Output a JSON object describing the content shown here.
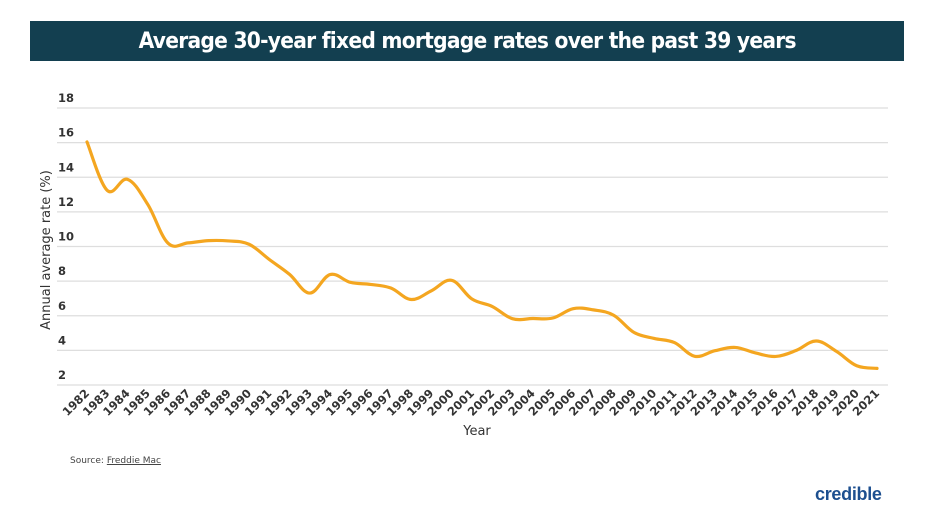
{
  "chart_data": {
    "type": "line",
    "title": "Average 30-year fixed mortgage rates over the past 39 years",
    "xlabel": "Year",
    "ylabel": "Annual average rate (%)",
    "ylim": [
      2,
      18
    ],
    "yticks": [
      2,
      4,
      6,
      8,
      10,
      12,
      14,
      16,
      18
    ],
    "grid": true,
    "line_color": "#f4a620",
    "x": [
      "1982",
      "1983",
      "1984",
      "1985",
      "1986",
      "1987",
      "1988",
      "1989",
      "1990",
      "1991",
      "1992",
      "1993",
      "1994",
      "1995",
      "1996",
      "1997",
      "1998",
      "1999",
      "2000",
      "2001",
      "2002",
      "2003",
      "2004",
      "2005",
      "2006",
      "2007",
      "2008",
      "2009",
      "2010",
      "2011",
      "2012",
      "2013",
      "2014",
      "2015",
      "2016",
      "2017",
      "2018",
      "2019",
      "2020",
      "2021"
    ],
    "values": [
      16.04,
      13.24,
      13.88,
      12.43,
      10.19,
      10.21,
      10.34,
      10.32,
      10.13,
      9.25,
      8.39,
      7.31,
      8.38,
      7.93,
      7.81,
      7.6,
      6.94,
      7.44,
      8.05,
      6.97,
      6.54,
      5.83,
      5.84,
      5.87,
      6.41,
      6.34,
      6.03,
      5.04,
      4.69,
      4.45,
      3.66,
      3.98,
      4.17,
      3.85,
      3.65,
      3.99,
      4.54,
      3.94,
      3.11,
      2.96
    ]
  },
  "title_bar_color": "#133f50",
  "source": {
    "label": "Source:",
    "link": "Freddie Mac"
  },
  "logo": "credible",
  "logo_color": "#1d4f8f"
}
